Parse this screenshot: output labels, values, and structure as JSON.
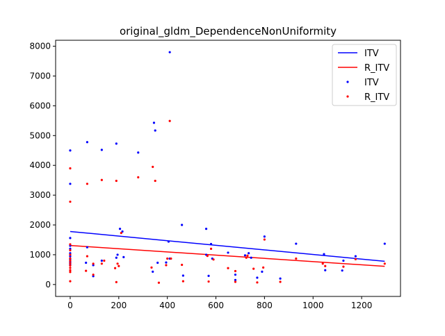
{
  "chart_data": {
    "type": "scatter",
    "title": "original_gldm_DependenceNonUniformity",
    "xlabel": "",
    "ylabel": "",
    "xlim": [
      -60,
      1360
    ],
    "ylim": [
      -400,
      8200
    ],
    "xticks": [
      0,
      200,
      400,
      600,
      800,
      1000,
      1200
    ],
    "yticks": [
      0,
      1000,
      2000,
      3000,
      4000,
      5000,
      6000,
      7000,
      8000
    ],
    "grid": false,
    "legend_position": "top-right",
    "legend": [
      "ITV",
      "R_ITV",
      "ITV",
      "R_ITV"
    ],
    "colors": {
      "ITV": "#0000ff",
      "R_ITV": "#ff0000"
    },
    "fit_lines": [
      {
        "name": "ITV",
        "x": [
          0,
          1295
        ],
        "y": [
          1780,
          780
        ]
      },
      {
        "name": "R_ITV",
        "x": [
          0,
          1295
        ],
        "y": [
          1310,
          610
        ]
      }
    ],
    "series": [
      {
        "name": "ITV",
        "points": [
          [
            0,
            4500
          ],
          [
            0,
            3380
          ],
          [
            0,
            1560
          ],
          [
            0,
            1300
          ],
          [
            0,
            1200
          ],
          [
            0,
            1050
          ],
          [
            0,
            950
          ],
          [
            0,
            850
          ],
          [
            0,
            760
          ],
          [
            0,
            700
          ],
          [
            0,
            650
          ],
          [
            65,
            730
          ],
          [
            70,
            4780
          ],
          [
            70,
            1250
          ],
          [
            95,
            650
          ],
          [
            95,
            280
          ],
          [
            130,
            4520
          ],
          [
            130,
            800
          ],
          [
            190,
            4730
          ],
          [
            190,
            900
          ],
          [
            195,
            1000
          ],
          [
            205,
            1870
          ],
          [
            215,
            1780
          ],
          [
            220,
            920
          ],
          [
            280,
            4430
          ],
          [
            340,
            430
          ],
          [
            345,
            5430
          ],
          [
            350,
            5170
          ],
          [
            360,
            730
          ],
          [
            395,
            740
          ],
          [
            405,
            1440
          ],
          [
            410,
            7800
          ],
          [
            410,
            870
          ],
          [
            460,
            2000
          ],
          [
            465,
            300
          ],
          [
            560,
            1870
          ],
          [
            560,
            1000
          ],
          [
            570,
            290
          ],
          [
            580,
            1360
          ],
          [
            585,
            870
          ],
          [
            650,
            1070
          ],
          [
            680,
            330
          ],
          [
            680,
            150
          ],
          [
            720,
            980
          ],
          [
            735,
            1050
          ],
          [
            745,
            900
          ],
          [
            770,
            230
          ],
          [
            790,
            430
          ],
          [
            800,
            1610
          ],
          [
            865,
            200
          ],
          [
            930,
            1370
          ],
          [
            1045,
            1020
          ],
          [
            1050,
            480
          ],
          [
            1120,
            470
          ],
          [
            1125,
            800
          ],
          [
            1175,
            950
          ],
          [
            1295,
            1370
          ]
        ]
      },
      {
        "name": "R_ITV",
        "points": [
          [
            0,
            3900
          ],
          [
            0,
            2780
          ],
          [
            0,
            1350
          ],
          [
            0,
            1150
          ],
          [
            0,
            1000
          ],
          [
            0,
            880
          ],
          [
            0,
            800
          ],
          [
            0,
            720
          ],
          [
            0,
            640
          ],
          [
            0,
            560
          ],
          [
            0,
            480
          ],
          [
            0,
            420
          ],
          [
            0,
            110
          ],
          [
            65,
            460
          ],
          [
            70,
            3380
          ],
          [
            70,
            950
          ],
          [
            95,
            700
          ],
          [
            95,
            330
          ],
          [
            130,
            3510
          ],
          [
            130,
            700
          ],
          [
            140,
            800
          ],
          [
            185,
            550
          ],
          [
            190,
            3480
          ],
          [
            190,
            80
          ],
          [
            195,
            700
          ],
          [
            200,
            620
          ],
          [
            210,
            1730
          ],
          [
            280,
            3600
          ],
          [
            335,
            570
          ],
          [
            340,
            3950
          ],
          [
            350,
            3480
          ],
          [
            365,
            60
          ],
          [
            395,
            650
          ],
          [
            400,
            870
          ],
          [
            410,
            5490
          ],
          [
            415,
            870
          ],
          [
            460,
            660
          ],
          [
            465,
            110
          ],
          [
            565,
            960
          ],
          [
            570,
            100
          ],
          [
            580,
            1200
          ],
          [
            590,
            840
          ],
          [
            650,
            550
          ],
          [
            680,
            450
          ],
          [
            680,
            90
          ],
          [
            725,
            900
          ],
          [
            730,
            970
          ],
          [
            755,
            530
          ],
          [
            770,
            70
          ],
          [
            795,
            570
          ],
          [
            800,
            1510
          ],
          [
            865,
            90
          ],
          [
            930,
            870
          ],
          [
            1040,
            700
          ],
          [
            1050,
            620
          ],
          [
            1125,
            600
          ],
          [
            1175,
            850
          ],
          [
            1295,
            700
          ]
        ]
      }
    ]
  }
}
